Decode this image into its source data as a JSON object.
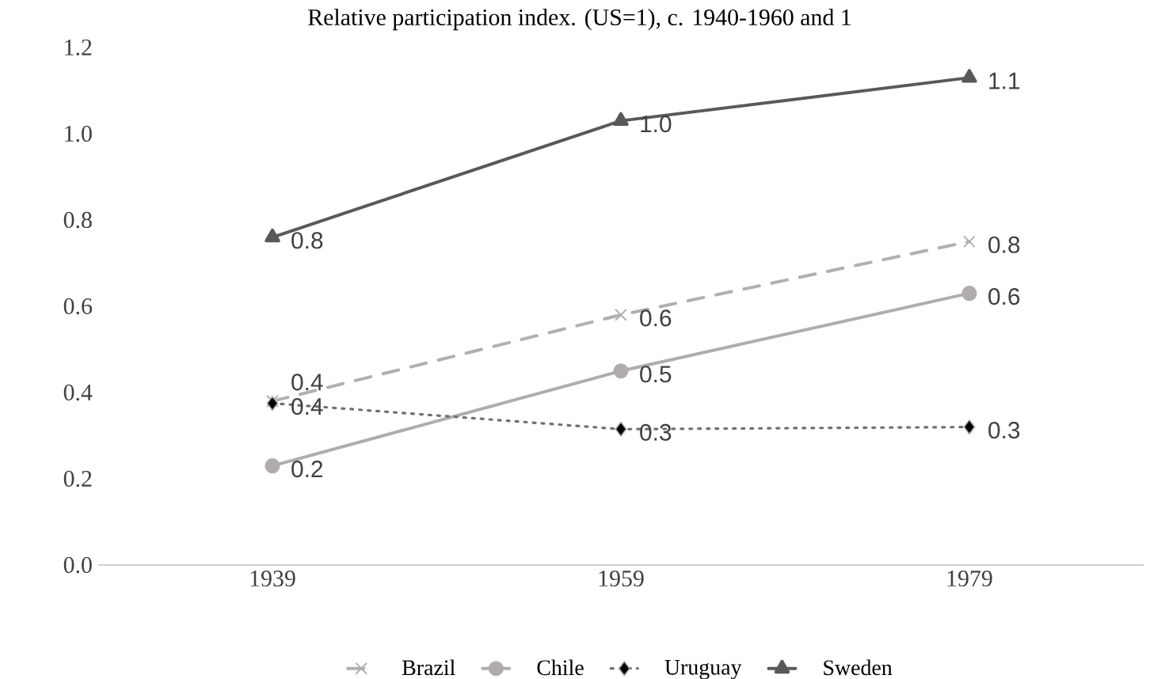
{
  "chart_data": {
    "type": "line",
    "title": "Relative participation index. (US=1), c. 1940-1960 and 1",
    "categories": [
      "1939",
      "1959",
      "1979"
    ],
    "ylim": [
      0,
      1.2
    ],
    "yticks": [
      {
        "value": 0,
        "label": "0.0"
      },
      {
        "value": 0.2,
        "label": "0.2"
      },
      {
        "value": 0.4,
        "label": "0.4"
      },
      {
        "value": 0.6,
        "label": "0.6"
      },
      {
        "value": 0.8,
        "label": "0.8"
      },
      {
        "value": 1.0,
        "label": "1.0"
      },
      {
        "value": 1.2,
        "label": "1.2"
      }
    ],
    "legend": "bottom",
    "series": [
      {
        "name": "Brazil",
        "color": "#b0b0b0",
        "marker": "cross",
        "line_style": "dashed",
        "values": [
          0.38,
          0.58,
          0.75
        ],
        "value_labels": [
          "0.4",
          "0.6",
          "0.8"
        ]
      },
      {
        "name": "Chile",
        "color": "#b0acac",
        "marker": "circle",
        "line_style": "solid",
        "values": [
          0.23,
          0.45,
          0.63
        ],
        "value_labels": [
          "0.2",
          "0.5",
          "0.6"
        ]
      },
      {
        "name": "Uruguay",
        "color": "#707070",
        "marker": "diamond",
        "line_style": "dotted",
        "values": [
          0.375,
          0.315,
          0.32
        ],
        "value_labels": [
          "0.4",
          "0.3",
          "0.3"
        ]
      },
      {
        "name": "Sweden",
        "color": "#595959",
        "marker": "triangle",
        "line_style": "solid",
        "values": [
          0.76,
          1.03,
          1.13
        ],
        "value_labels": [
          "0.8",
          "1.0",
          "1.1"
        ]
      }
    ]
  }
}
